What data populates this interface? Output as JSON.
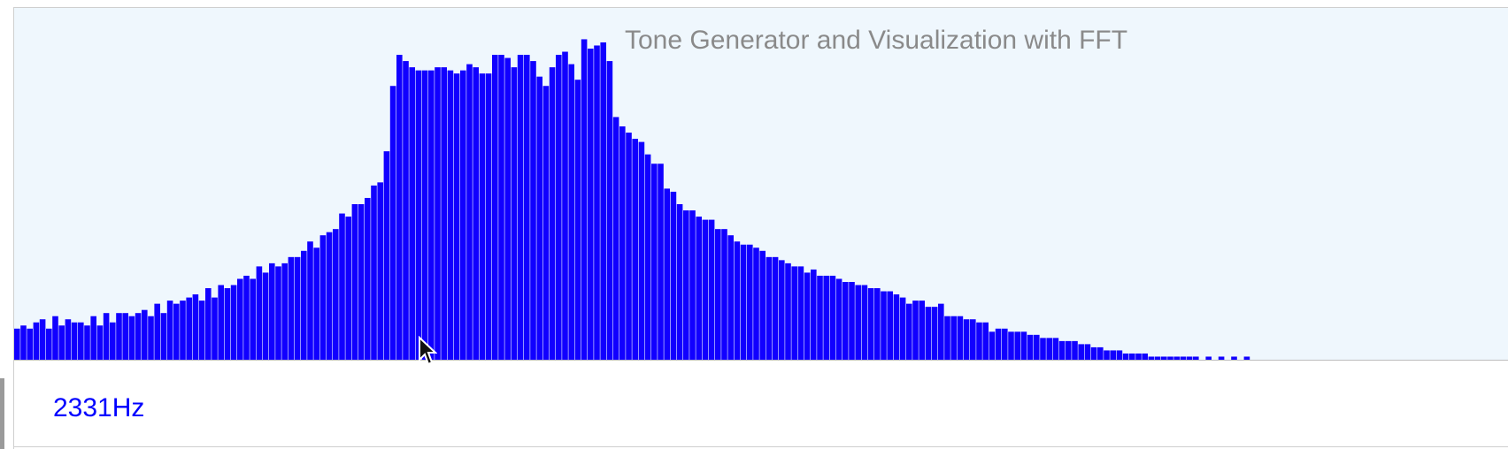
{
  "app": {
    "title": "Tone Generator and Visualization with FFT"
  },
  "readout": {
    "frequency": "2331Hz"
  },
  "colors": {
    "bar": "#1100ff",
    "background": "#eff7fd",
    "title": "#8a8a8a",
    "frequency": "#0000ff"
  },
  "chart_data": {
    "type": "bar",
    "ylim": [
      0,
      100
    ],
    "values": [
      10,
      11,
      10,
      12,
      13,
      10,
      14,
      11,
      13,
      12,
      12,
      11,
      14,
      11,
      15,
      12,
      15,
      15,
      14,
      15,
      16,
      14,
      18,
      15,
      19,
      18,
      19,
      20,
      21,
      19,
      23,
      20,
      24,
      23,
      24,
      26,
      27,
      26,
      30,
      28,
      31,
      30,
      31,
      33,
      33,
      35,
      38,
      36,
      40,
      41,
      42,
      47,
      46,
      50,
      50,
      52,
      56,
      57,
      67,
      88,
      98,
      96,
      94,
      93,
      93,
      93,
      94,
      94,
      93,
      92,
      93,
      95,
      94,
      92,
      92,
      98,
      98,
      97,
      94,
      98,
      98,
      96,
      91,
      88,
      94,
      98,
      99,
      95,
      90,
      103,
      100,
      101,
      102,
      96,
      78,
      75,
      73,
      71,
      70,
      66,
      63,
      63,
      55,
      54,
      50,
      48,
      48,
      46,
      45,
      45,
      42,
      42,
      40,
      38,
      37,
      37,
      36,
      35,
      33,
      33,
      32,
      31,
      30,
      30,
      28,
      29,
      27,
      27,
      27,
      26,
      25,
      25,
      24,
      24,
      23,
      23,
      22,
      22,
      21,
      20,
      18,
      19,
      19,
      17,
      17,
      18,
      14,
      14,
      14,
      13,
      13,
      12,
      12,
      9,
      10,
      10,
      9,
      9,
      9,
      8,
      8,
      7,
      7,
      7,
      6,
      6,
      6,
      5,
      5,
      4,
      4,
      3,
      3,
      3,
      2,
      2,
      2,
      2,
      1,
      1,
      1,
      1,
      1,
      1,
      1,
      1,
      0,
      1,
      0,
      1,
      0,
      1,
      0,
      1,
      0,
      0,
      0,
      0,
      0,
      0,
      0,
      0,
      0,
      0,
      0,
      0,
      0,
      0,
      0,
      0,
      0,
      0,
      0,
      0,
      0,
      0,
      0,
      0,
      0,
      0,
      0,
      0,
      0,
      0,
      0,
      0,
      0,
      0,
      0
    ]
  }
}
